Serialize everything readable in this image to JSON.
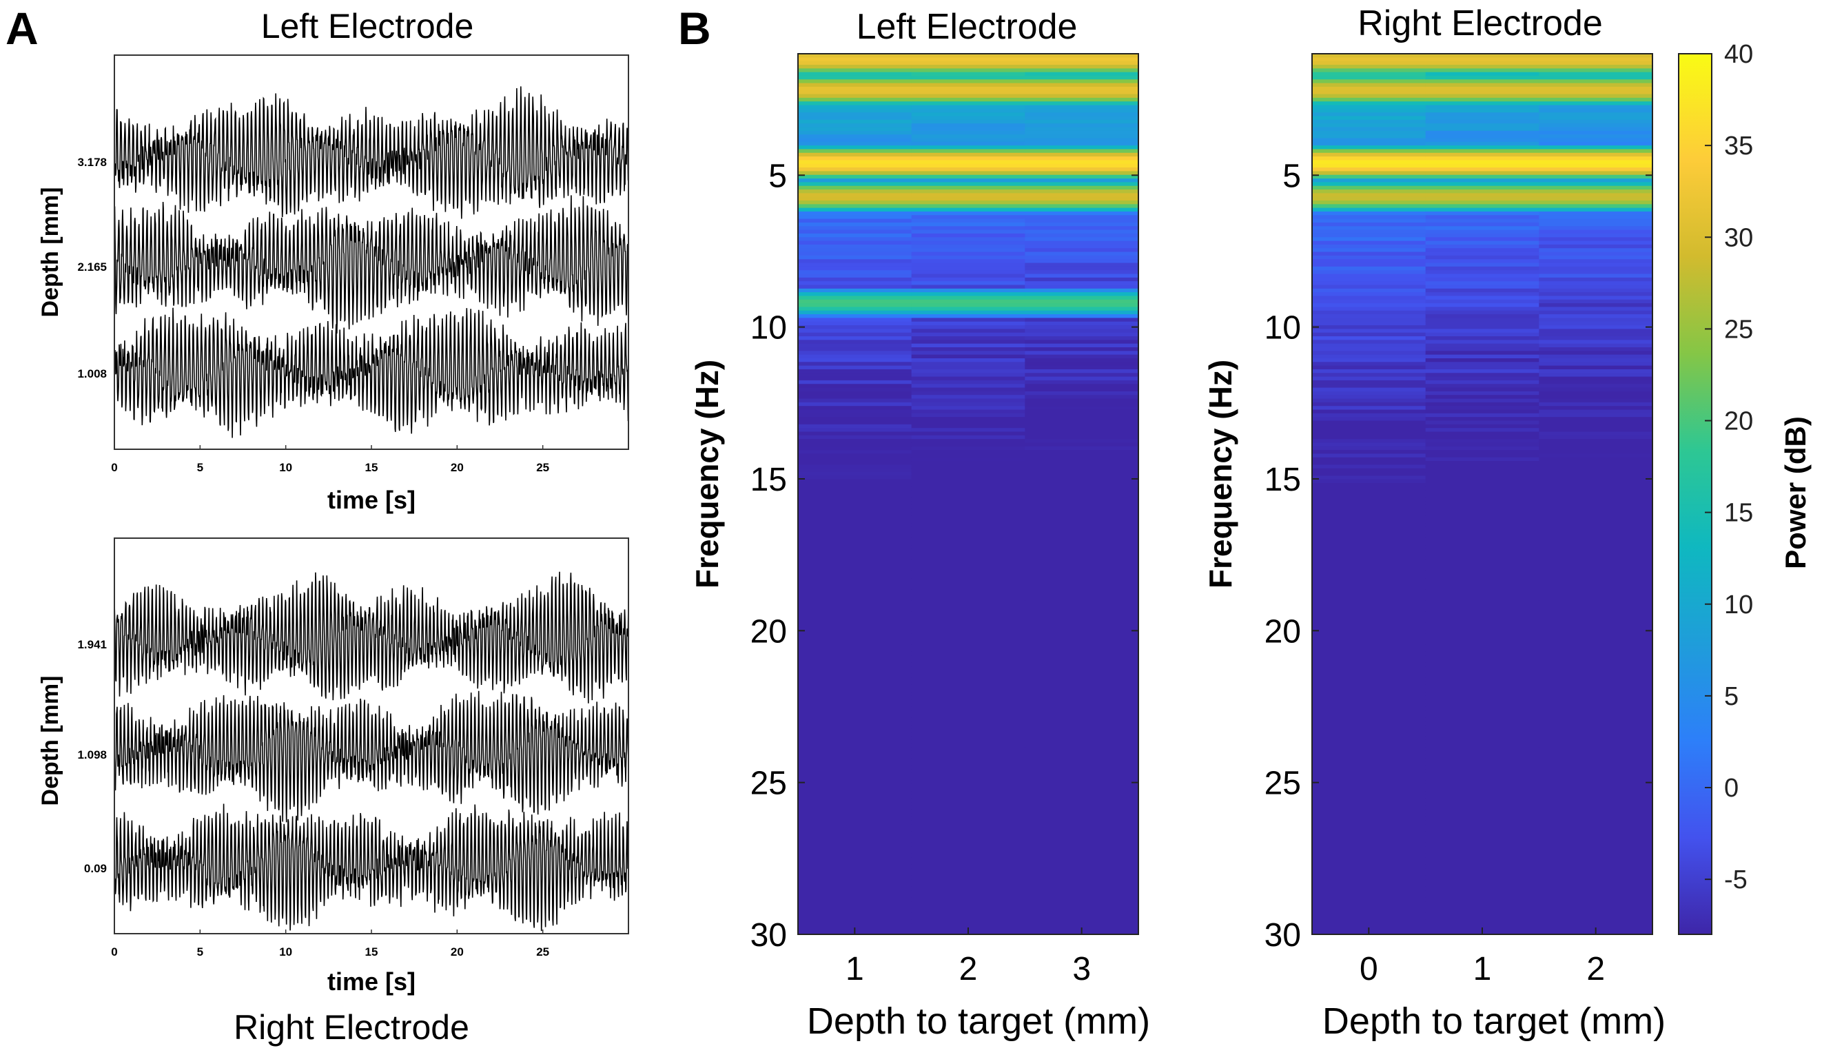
{
  "panel_labels": {
    "a": "A",
    "b": "B"
  },
  "chart_data": [
    {
      "type": "line",
      "id": "A-left",
      "title": "Left Electrode",
      "xlabel": "time [s]",
      "ylabel": "Depth [mm]",
      "xlim": [
        0,
        30
      ],
      "xticks": [
        0,
        5,
        10,
        15,
        20,
        25
      ],
      "depth_ticks": [
        "3.178",
        "2.165",
        "1.008"
      ],
      "series": [
        {
          "name": "3.178",
          "freq_hz": 4.2,
          "amplitude": 1.0
        },
        {
          "name": "2.165",
          "freq_hz": 4.2,
          "amplitude": 1.0
        },
        {
          "name": "1.008",
          "freq_hz": 4.2,
          "amplitude": 1.0
        }
      ]
    },
    {
      "type": "line",
      "id": "A-right",
      "title": "Right Electrode",
      "xlabel": "time [s]",
      "ylabel": "Depth [mm]",
      "xlim": [
        0,
        30
      ],
      "xticks": [
        0,
        5,
        10,
        15,
        20,
        25
      ],
      "depth_ticks": [
        "1.941",
        "1.098",
        "0.09"
      ],
      "series": [
        {
          "name": "1.941",
          "freq_hz": 4.5,
          "amplitude": 1.0
        },
        {
          "name": "1.098",
          "freq_hz": 4.5,
          "amplitude": 1.0
        },
        {
          "name": "0.09",
          "freq_hz": 4.5,
          "amplitude": 1.0
        }
      ]
    },
    {
      "type": "heatmap",
      "id": "B-left",
      "title": "Left Electrode",
      "xlabel": "Depth to target (mm)",
      "ylabel": "Frequency (Hz)",
      "x_categories": [
        "1",
        "2",
        "3"
      ],
      "ylim": [
        1,
        30
      ],
      "yticks": [
        5,
        10,
        15,
        20,
        25,
        30
      ],
      "peaks_hz": [
        {
          "f": 1.2,
          "db": 33
        },
        {
          "f": 2.2,
          "db": 32
        },
        {
          "f": 4.6,
          "db": 37
        },
        {
          "f": 5.7,
          "db": 30
        },
        {
          "f": 9.2,
          "db": 20
        }
      ]
    },
    {
      "type": "heatmap",
      "id": "B-right",
      "title": "Right Electrode",
      "xlabel": "Depth to target (mm)",
      "ylabel": "Frequency (Hz)",
      "x_categories": [
        "0",
        "1",
        "2"
      ],
      "ylim": [
        1,
        30
      ],
      "yticks": [
        5,
        10,
        15,
        20,
        25,
        30
      ],
      "peaks_hz": [
        {
          "f": 1.2,
          "db": 32
        },
        {
          "f": 2.2,
          "db": 31
        },
        {
          "f": 4.6,
          "db": 38
        },
        {
          "f": 5.7,
          "db": 29
        }
      ]
    }
  ],
  "colorbar": {
    "label": "Power (dB)",
    "min": -8,
    "max": 40,
    "ticks": [
      "40",
      "35",
      "30",
      "25",
      "20",
      "15",
      "10",
      "5",
      "0",
      "-5"
    ],
    "colormap": [
      "#3e26a8",
      "#4352ee",
      "#2d7ff9",
      "#1f9dda",
      "#0fb8c0",
      "#2ec793",
      "#85c646",
      "#d2bb2e",
      "#fdcc39",
      "#f9fb14"
    ]
  },
  "bottom_label": "Right Electrode"
}
